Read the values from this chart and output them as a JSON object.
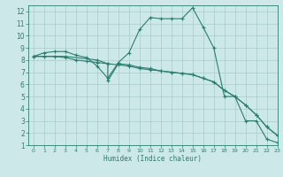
{
  "line1_x": [
    0,
    1,
    2,
    3,
    4,
    5,
    6,
    7,
    8,
    9,
    10,
    11,
    12,
    13,
    14,
    15,
    16,
    17,
    18,
    19,
    20,
    21,
    22,
    23
  ],
  "line1_y": [
    8.3,
    8.6,
    8.7,
    8.7,
    8.4,
    8.2,
    7.5,
    6.5,
    7.8,
    8.6,
    10.5,
    11.5,
    11.4,
    11.4,
    11.4,
    12.3,
    10.7,
    9.0,
    5.0,
    5.0,
    3.0,
    3.0,
    1.5,
    1.2
  ],
  "line2_x": [
    0,
    1,
    2,
    3,
    4,
    5,
    6,
    7,
    8,
    9,
    10,
    11,
    12,
    13,
    14,
    15,
    16,
    17,
    18,
    19,
    20,
    21,
    22,
    23
  ],
  "line2_y": [
    8.3,
    8.3,
    8.3,
    8.2,
    8.0,
    7.9,
    7.8,
    7.7,
    7.6,
    7.5,
    7.3,
    7.2,
    7.1,
    7.0,
    6.9,
    6.8,
    6.5,
    6.2,
    5.5,
    5.0,
    4.3,
    3.5,
    2.5,
    1.8
  ],
  "line3_x": [
    0,
    3,
    6,
    7,
    7,
    8,
    9,
    10,
    11,
    12,
    13,
    14,
    15,
    16,
    17,
    18,
    19,
    20,
    21,
    22,
    23
  ],
  "line3_y": [
    8.3,
    8.3,
    8.0,
    7.7,
    6.3,
    7.7,
    7.6,
    7.4,
    7.3,
    7.1,
    7.0,
    6.9,
    6.8,
    6.5,
    6.2,
    5.5,
    5.0,
    4.3,
    3.5,
    2.5,
    1.8
  ],
  "color": "#2d7d6e",
  "bg_color": "#cce8e8",
  "grid_color": "#aacccc",
  "xlabel": "Humidex (Indice chaleur)",
  "xlim": [
    -0.5,
    23
  ],
  "ylim": [
    1,
    12.5
  ],
  "xticks": [
    0,
    1,
    2,
    3,
    4,
    5,
    6,
    7,
    8,
    9,
    10,
    11,
    12,
    13,
    14,
    15,
    16,
    17,
    18,
    19,
    20,
    21,
    22,
    23
  ],
  "yticks": [
    1,
    2,
    3,
    4,
    5,
    6,
    7,
    8,
    9,
    10,
    11,
    12
  ]
}
